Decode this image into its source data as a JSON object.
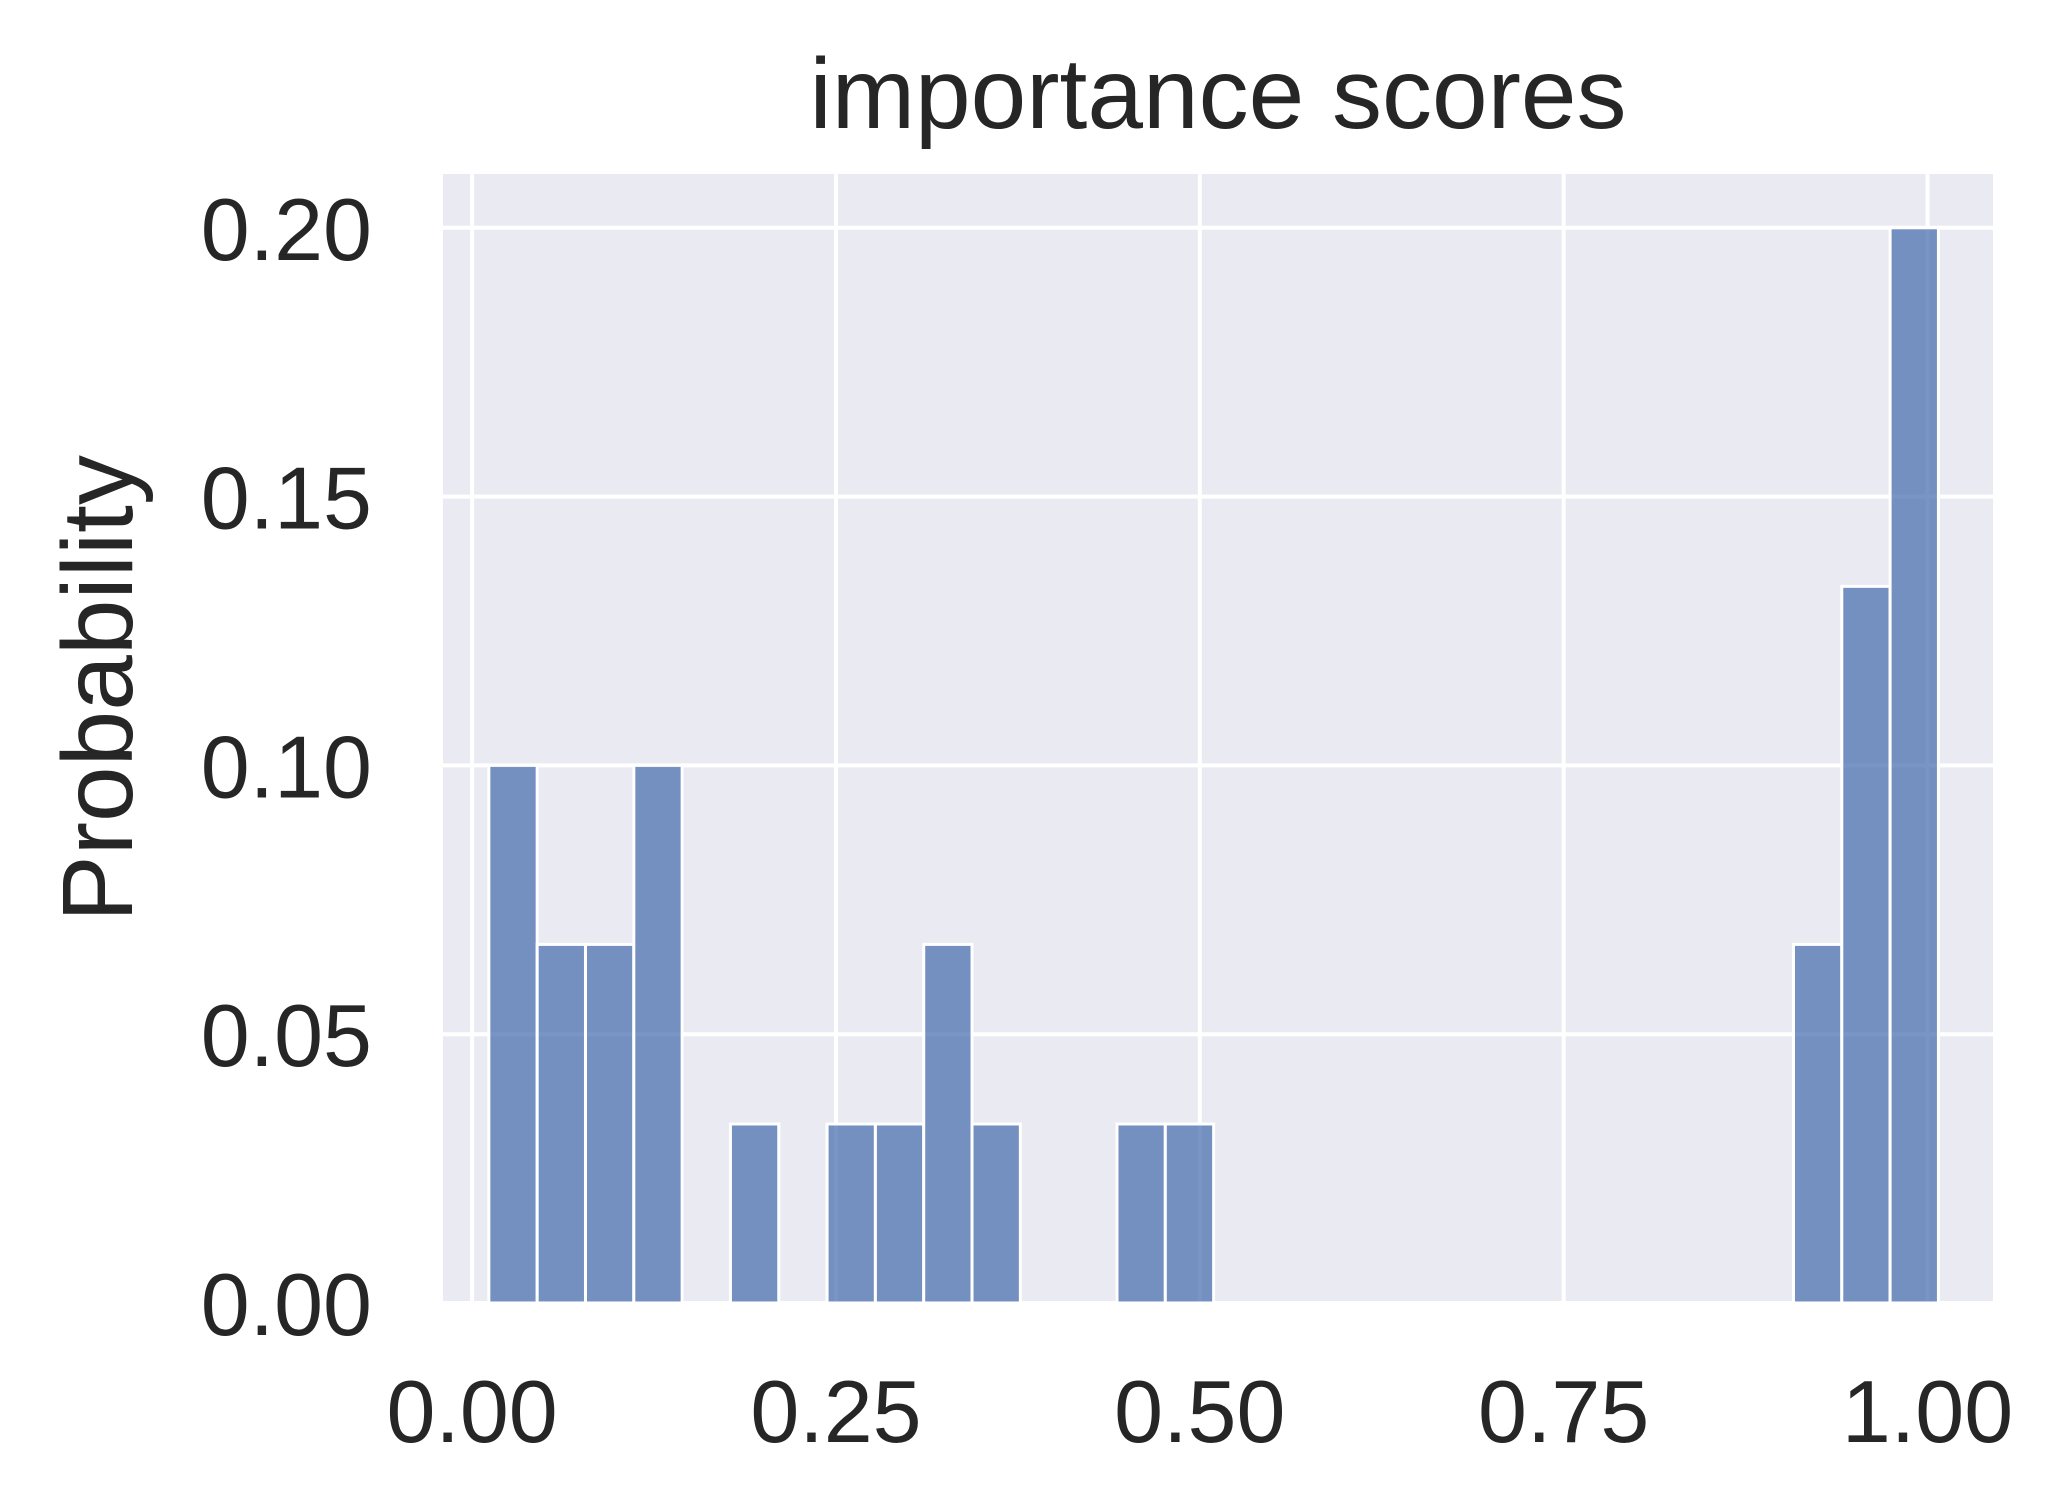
{
  "chart_data": {
    "type": "bar",
    "title": "importance scores",
    "xlabel": "",
    "ylabel": "Probability",
    "xlim": [
      -0.02,
      1.045
    ],
    "ylim": [
      0,
      0.21
    ],
    "xticks": [
      0.0,
      0.25,
      0.5,
      0.75,
      1.0
    ],
    "xtick_labels": [
      "0.00",
      "0.25",
      "0.50",
      "0.75",
      "1.00"
    ],
    "yticks": [
      0.0,
      0.05,
      0.1,
      0.15,
      0.2
    ],
    "ytick_labels": [
      "0.00",
      "0.05",
      "0.10",
      "0.15",
      "0.20"
    ],
    "grid": true,
    "legend": "none",
    "colors": {
      "bar": "#4c72b0",
      "plot_background": "#eaeaf2",
      "grid": "#ffffff",
      "text": "#262626"
    },
    "bins": [
      {
        "start": 0.0115,
        "end": 0.0447,
        "value": 0.1
      },
      {
        "start": 0.0447,
        "end": 0.0779,
        "value": 0.0667
      },
      {
        "start": 0.0779,
        "end": 0.1111,
        "value": 0.0667
      },
      {
        "start": 0.1111,
        "end": 0.1443,
        "value": 0.1
      },
      {
        "start": 0.1775,
        "end": 0.2107,
        "value": 0.0333
      },
      {
        "start": 0.2439,
        "end": 0.2771,
        "value": 0.0333
      },
      {
        "start": 0.2771,
        "end": 0.3103,
        "value": 0.0333
      },
      {
        "start": 0.3103,
        "end": 0.3435,
        "value": 0.0667
      },
      {
        "start": 0.3435,
        "end": 0.3767,
        "value": 0.0333
      },
      {
        "start": 0.4431,
        "end": 0.4763,
        "value": 0.0333
      },
      {
        "start": 0.4763,
        "end": 0.5095,
        "value": 0.0333
      },
      {
        "start": 0.9079,
        "end": 0.9411,
        "value": 0.0667
      },
      {
        "start": 0.9411,
        "end": 0.9743,
        "value": 0.1333
      },
      {
        "start": 0.9743,
        "end": 1.0075,
        "value": 0.2
      }
    ]
  }
}
